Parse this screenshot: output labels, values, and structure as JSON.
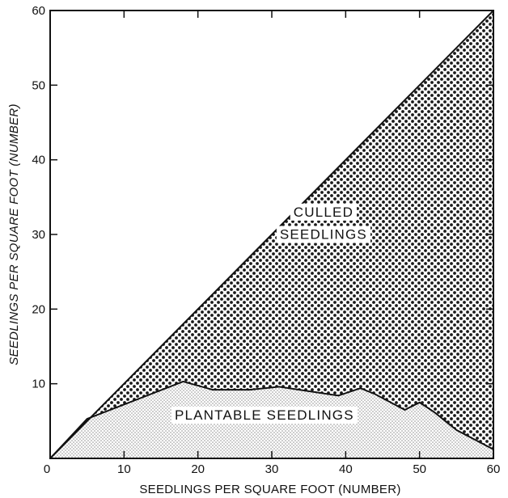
{
  "chart_data": {
    "type": "area",
    "title": "",
    "xlabel": "SEEDLINGS PER SQUARE FOOT (NUMBER)",
    "ylabel": "SEEDLINGS PER SQUARE FOOT (NUMBER)",
    "xlim": [
      0,
      60
    ],
    "ylim": [
      0,
      60
    ],
    "x_ticks": [
      0,
      10,
      20,
      30,
      40,
      50,
      60
    ],
    "y_ticks": [
      10,
      20,
      30,
      40,
      50,
      60
    ],
    "x_tick_labels": [
      "0",
      "10",
      "20",
      "30",
      "40",
      "50",
      "60"
    ],
    "y_tick_labels": [
      "10",
      "20",
      "30",
      "40",
      "50",
      "60"
    ],
    "grid": false,
    "series": [
      {
        "name": "CULLED SEEDLINGS",
        "fill": "dense-dot",
        "x": [
          0,
          5,
          18,
          22,
          27,
          31,
          35,
          39,
          42,
          44,
          48,
          50,
          52,
          55,
          60
        ],
        "y": [
          0,
          5,
          18,
          22,
          27,
          31,
          35,
          39,
          42,
          44,
          48,
          50,
          52,
          55,
          60
        ]
      },
      {
        "name": "PLANTABLE SEEDLINGS",
        "fill": "light-stipple",
        "x": [
          0,
          5,
          18,
          22,
          27,
          31,
          35,
          39,
          42,
          44,
          48,
          50,
          52,
          55,
          60
        ],
        "y": [
          0,
          5.3,
          10.3,
          9.2,
          9.2,
          9.6,
          9.0,
          8.4,
          9.4,
          8.6,
          6.5,
          7.5,
          6.2,
          3.8,
          1.2
        ]
      }
    ],
    "annotations": [
      {
        "text": "CULLED",
        "x": 37,
        "y": 32.4
      },
      {
        "text": "SEEDLINGS",
        "x": 37,
        "y": 29.4
      },
      {
        "text": "PLANTABLE SEEDLINGS",
        "x": 29,
        "y": 5.2
      }
    ],
    "colors": {
      "axis": "#111111",
      "culled_dot": "#1a1a1a",
      "plantable_dot": "#8a8a8a",
      "background": "#ffffff"
    }
  }
}
